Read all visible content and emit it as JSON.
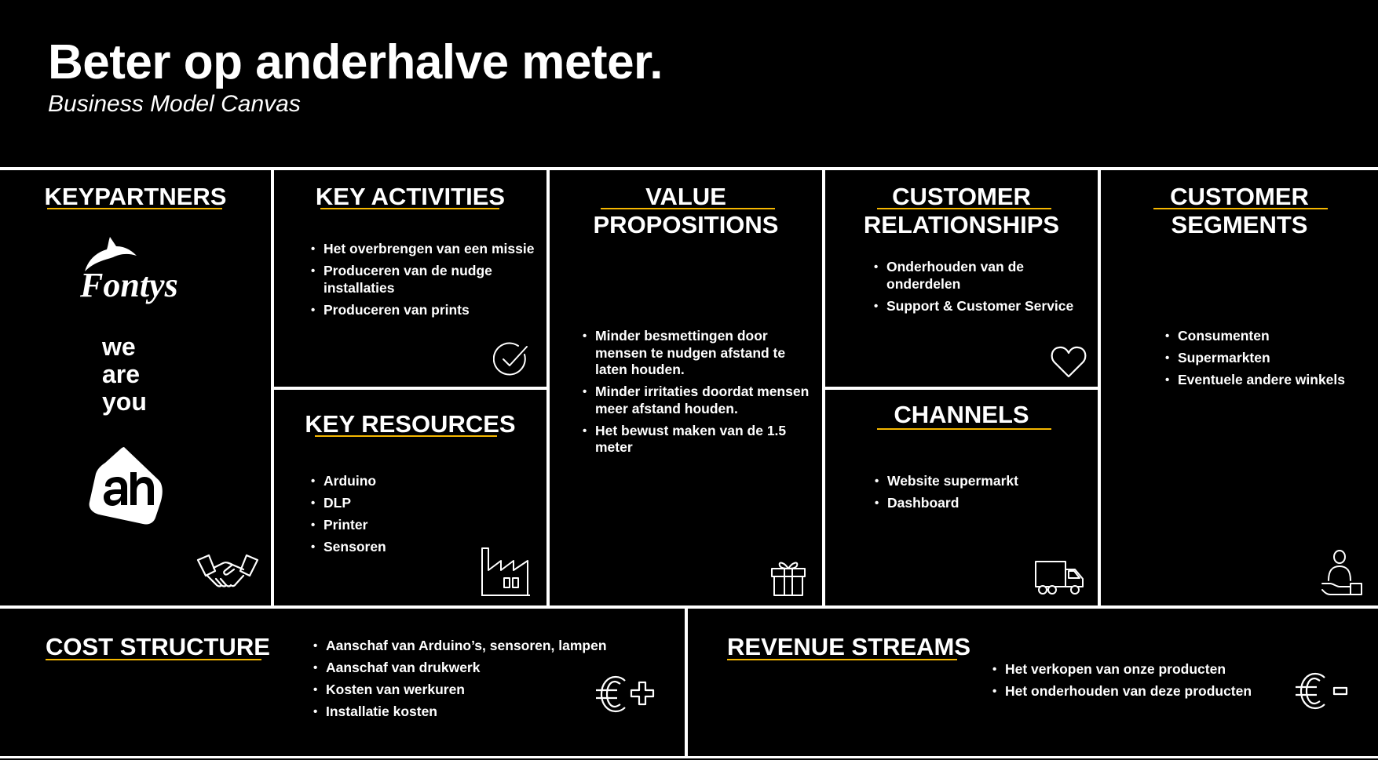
{
  "header": {
    "title": "Beter op anderhalve meter.",
    "subtitle": "Business Model Canvas"
  },
  "colors": {
    "background": "#000000",
    "text": "#ffffff",
    "accent_underline": "#f5b700",
    "divider": "#ffffff"
  },
  "key_partners": {
    "title": "KEYPARTNERS",
    "logos": {
      "fontys": "Fontys",
      "we_are_you": [
        "we",
        "are",
        "you"
      ]
    },
    "icon": "handshake-icon"
  },
  "key_activities": {
    "title": "KEY ACTIVITIES",
    "items": [
      "Het overbrengen van een missie",
      "Produceren van de nudge installaties",
      "Produceren van prints"
    ],
    "icon": "checkmark-circle-icon"
  },
  "key_resources": {
    "title": "KEY RESOURCES",
    "items": [
      "Arduino",
      "DLP",
      "Printer",
      "Sensoren"
    ],
    "icon": "factory-icon"
  },
  "value_propositions": {
    "title_line1": "VALUE",
    "title_line2": "PROPOSITIONS",
    "items": [
      "Minder besmettingen door mensen te nudgen afstand te laten houden.",
      "Minder irritaties doordat mensen meer afstand houden.",
      "Het bewust maken van de 1.5 meter"
    ],
    "icon": "gift-icon"
  },
  "customer_relationships": {
    "title_line1": "CUSTOMER",
    "title_line2": "RELATIONSHIPS",
    "items": [
      "Onderhouden van de onderdelen",
      "Support & Customer Service"
    ],
    "icon": "heart-icon"
  },
  "channels": {
    "title": "CHANNELS",
    "items": [
      "Website supermarkt",
      "Dashboard"
    ],
    "icon": "truck-icon"
  },
  "customer_segments": {
    "title_line1": "CUSTOMER",
    "title_line2": "SEGMENTS",
    "items": [
      "Consumenten",
      "Supermarkten",
      "Eventuele andere winkels"
    ],
    "icon": "person-with-box-icon"
  },
  "cost_structure": {
    "title": "COST STRUCTURE",
    "items": [
      "Aanschaf van Arduino’s, sensoren, lampen",
      "Aanschaf van drukwerk",
      "Kosten van werkuren",
      "Installatie kosten"
    ],
    "icon": "euro-plus-icon"
  },
  "revenue_streams": {
    "title": "REVENUE STREAMS",
    "items": [
      "Het verkopen van onze producten",
      "Het onderhouden van deze producten"
    ],
    "icon": "euro-minus-icon"
  }
}
